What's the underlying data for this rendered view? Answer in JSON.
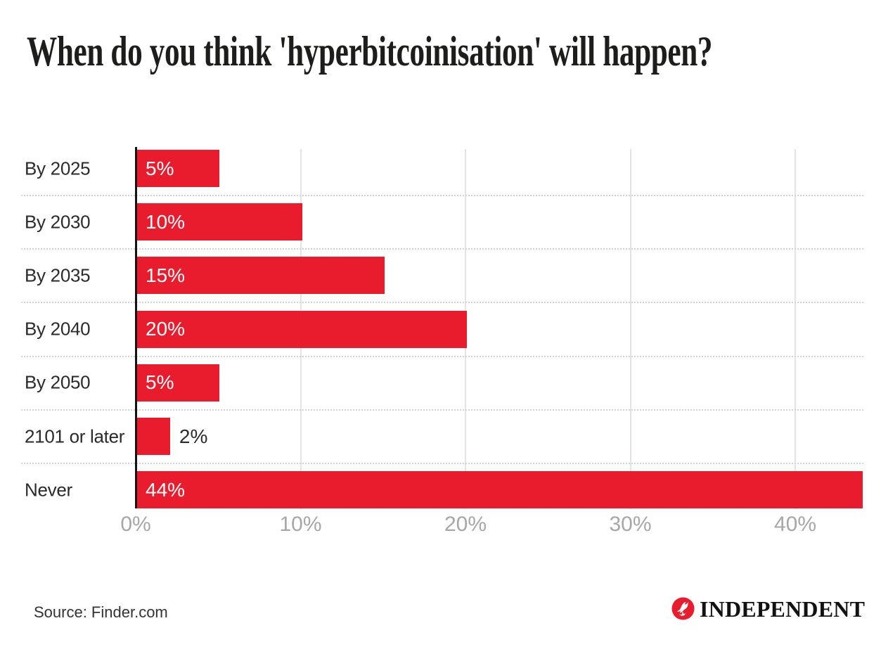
{
  "title": "When do you think 'hyperbitcoinisation' will happen?",
  "source": "Source: Finder.com",
  "logo": {
    "wordmark": "INDEPENDENT",
    "eagle_icon": "eagle-in-red-circle"
  },
  "colors": {
    "bar_red": "#e81c2d",
    "title_text": "#1d1d1b",
    "category_text": "#2b2b2b",
    "tick_text": "#a7a7a7",
    "axis_line": "#141414",
    "gridline": "#e4e4e4",
    "row_separator": "#d4d4d4",
    "logo_red": "#e81c2d"
  },
  "chart_data": {
    "type": "bar",
    "orientation": "horizontal",
    "title": "When do you think 'hyperbitcoinisation' will happen?",
    "categories": [
      "By 2025",
      "By 2030",
      "By 2035",
      "By 2040",
      "By 2050",
      "2101 or later",
      "Never"
    ],
    "values": [
      5,
      10,
      15,
      20,
      5,
      2,
      44
    ],
    "value_labels": [
      "5%",
      "10%",
      "15%",
      "20%",
      "5%",
      "2%",
      "44%"
    ],
    "x_tick_labels": [
      "0%",
      "10%",
      "20%",
      "30%",
      "40%"
    ],
    "x_tick_values": [
      0,
      10,
      20,
      30,
      40
    ],
    "xlim": [
      0,
      45.2
    ],
    "xlabel": "",
    "ylabel": "",
    "grid": "vertical solid gridlines at ticks; dotted horizontal separators between rows",
    "legend": "none",
    "bar_color": "#e81c2d",
    "value_label_placement": "inside-left, outside for 2% bar"
  }
}
